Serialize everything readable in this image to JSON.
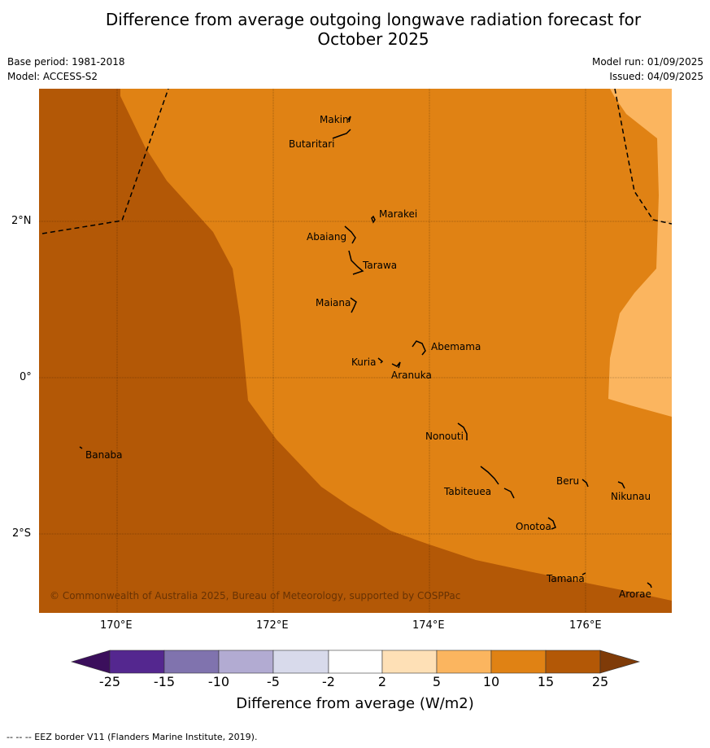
{
  "title_line1": "Difference from average outgoing longwave radiation forecast for",
  "title_line2": "October 2025",
  "base_period": "Base period: 1981-2018",
  "model": "Model: ACCESS-S2",
  "model_run": "Model run: 01/09/2025",
  "issued": "Issued: 04/09/2025",
  "copyright": "© Commonwealth of Australia 2025, Bureau of Meteorology, supported by COSPPac",
  "footnote": "--  --  -- EEZ border V11 (Flanders Marine Institute, 2019).",
  "axes": {
    "x_ticks": [
      "170°E",
      "172°E",
      "174°E",
      "176°E"
    ],
    "y_ticks": [
      "2°N",
      "0°",
      "2°S"
    ]
  },
  "places": [
    {
      "name": "Makin"
    },
    {
      "name": "Butaritari"
    },
    {
      "name": "Marakei"
    },
    {
      "name": "Abaiang"
    },
    {
      "name": "Tarawa"
    },
    {
      "name": "Maiana"
    },
    {
      "name": "Abemama"
    },
    {
      "name": "Kuria"
    },
    {
      "name": "Aranuka"
    },
    {
      "name": "Nonouti"
    },
    {
      "name": "Banaba"
    },
    {
      "name": "Beru"
    },
    {
      "name": "Nikunau"
    },
    {
      "name": "Tabiteuea"
    },
    {
      "name": "Onotoa"
    },
    {
      "name": "Tamana"
    },
    {
      "name": "Arorae"
    }
  ],
  "colorbar": {
    "title": "Difference from average (W/m2)",
    "ticks": [
      "-25",
      "-15",
      "-10",
      "-5",
      "-2",
      "2",
      "5",
      "10",
      "15",
      "25"
    ],
    "colors": [
      "#3b0f5c",
      "#54278f",
      "#8073ae",
      "#b2abd2",
      "#d8daeb",
      "#ffffff",
      "#fee0b6",
      "#fbb55f",
      "#e08214",
      "#b35806",
      "#7f3b08"
    ]
  },
  "map_colors": {
    "band_15_25": "#b35806",
    "band_10_15": "#e08214",
    "band_5_10": "#fbb55f"
  }
}
